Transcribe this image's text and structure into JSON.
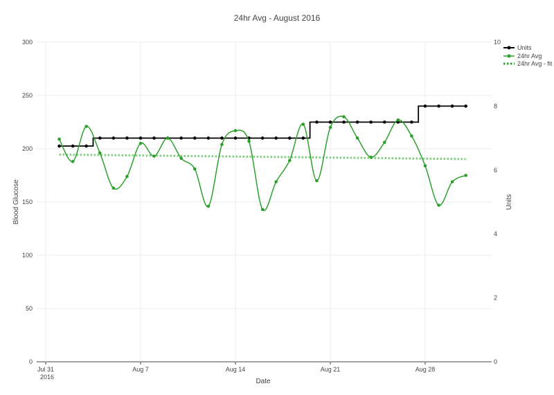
{
  "chart_data": {
    "type": "line",
    "title": "24hr Avg - August 2016",
    "xlabel": "Date",
    "ylabel": "Blood Glucose",
    "y2label": "Units",
    "ylim": [
      0,
      300
    ],
    "y2lim": [
      0,
      10
    ],
    "yticks": [
      0,
      50,
      100,
      150,
      200,
      250,
      300
    ],
    "y2ticks": [
      0,
      2,
      4,
      6,
      8,
      10
    ],
    "xticks": [
      {
        "day": 0,
        "label": "Jul 31",
        "label2": "2016"
      },
      {
        "day": 7,
        "label": "Aug 7",
        "label2": ""
      },
      {
        "day": 14,
        "label": "Aug 14",
        "label2": ""
      },
      {
        "day": 21,
        "label": "Aug 21",
        "label2": ""
      },
      {
        "day": 28,
        "label": "Aug 28",
        "label2": ""
      }
    ],
    "x_days_from_jul31": [
      1,
      2,
      3,
      4,
      5,
      6,
      7,
      8,
      9,
      10,
      11,
      12,
      13,
      14,
      15,
      16,
      17,
      18,
      19,
      20,
      21,
      22,
      23,
      24,
      25,
      26,
      27,
      28,
      29,
      30,
      31
    ],
    "series": [
      {
        "name": "Units",
        "color": "#000000",
        "axis": "y2",
        "shape": "step",
        "values": [
          6.75,
          6.75,
          6.75,
          7,
          7,
          7,
          7,
          7,
          7,
          7,
          7,
          7,
          7,
          7,
          7,
          7,
          7,
          7,
          7,
          7.5,
          7.5,
          7.5,
          7.5,
          7.5,
          7.5,
          7.5,
          7.5,
          8,
          8,
          8,
          8
        ]
      },
      {
        "name": "24hr Avg",
        "color": "#2ca02c",
        "axis": "y",
        "shape": "spline",
        "values": [
          209,
          188,
          221,
          196,
          163,
          174,
          205,
          193,
          210,
          191,
          181,
          146,
          204,
          217,
          207,
          143,
          169,
          189,
          223,
          170,
          220,
          230,
          210,
          192,
          206,
          227,
          212,
          184,
          147,
          169,
          175
        ]
      },
      {
        "name": "24hr Avg - fit",
        "color": "#7fcf7f",
        "axis": "y",
        "shape": "dotted",
        "values": [
          194.5,
          190.3
        ]
      }
    ],
    "legend": "top-right",
    "grid": true
  }
}
